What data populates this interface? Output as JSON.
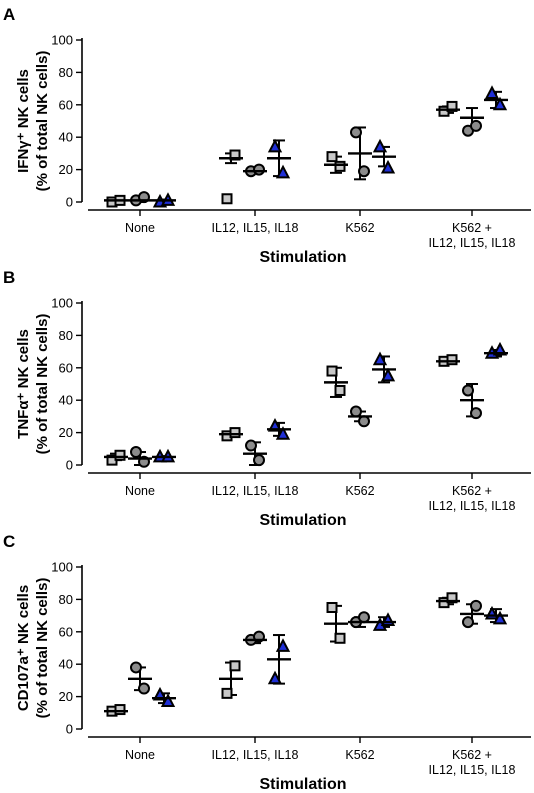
{
  "marker_styles": {
    "square": {
      "fill": "#c8c8c8",
      "stroke": "#000000"
    },
    "circle": {
      "fill": "#8c8c8c",
      "stroke": "#000000"
    },
    "triangle": {
      "fill": "#1f2fd6",
      "stroke": "#000000"
    }
  },
  "chart_data": [
    {
      "panel": "A",
      "type": "scatter",
      "xlabel": "Stimulation",
      "ylabel_line1": "IFNγ⁺ NK cells",
      "ylabel_line2": "(% of total NK cells)",
      "ylim": [
        0,
        100
      ],
      "yticks": [
        "0",
        "20",
        "40",
        "60",
        "80",
        "100"
      ],
      "categories": [
        {
          "lines": [
            "None"
          ]
        },
        {
          "lines": [
            "IL12, IL15, IL18"
          ]
        },
        {
          "lines": [
            "K562"
          ]
        },
        {
          "lines": [
            "K562 +",
            "IL12, IL15, IL18"
          ]
        }
      ],
      "series": [
        {
          "marker": "square",
          "points": [
            [
              0,
              1
            ],
            [
              2,
              29
            ],
            [
              28,
              22
            ],
            [
              56,
              59
            ]
          ],
          "mean": [
            1,
            27,
            23,
            57
          ],
          "sd": [
            1,
            3,
            5,
            2
          ]
        },
        {
          "marker": "circle",
          "points": [
            [
              1,
              3
            ],
            [
              19,
              20
            ],
            [
              43,
              19
            ],
            [
              44,
              47
            ]
          ],
          "mean": [
            1,
            19,
            30,
            52
          ],
          "sd": [
            1,
            0.5,
            16,
            6
          ]
        },
        {
          "marker": "triangle",
          "points": [
            [
              0,
              1
            ],
            [
              34,
              18
            ],
            [
              34,
              21
            ],
            [
              67,
              60
            ]
          ],
          "mean": [
            1,
            27,
            28,
            63
          ],
          "sd": [
            0.5,
            11,
            6,
            5
          ]
        }
      ]
    },
    {
      "panel": "B",
      "type": "scatter",
      "xlabel": "Stimulation",
      "ylabel_line1": "TNFα⁺ NK cells",
      "ylabel_line2": "(% of total NK cells)",
      "ylim": [
        0,
        100
      ],
      "yticks": [
        "0",
        "20",
        "40",
        "60",
        "80",
        "100"
      ],
      "categories": [
        {
          "lines": [
            "None"
          ]
        },
        {
          "lines": [
            "IL12, IL15, IL18"
          ]
        },
        {
          "lines": [
            "K562"
          ]
        },
        {
          "lines": [
            "K562 +",
            "IL12, IL15, IL18"
          ]
        }
      ],
      "series": [
        {
          "marker": "square",
          "points": [
            [
              3,
              6
            ],
            [
              18,
              20
            ],
            [
              58,
              46
            ],
            [
              64,
              65
            ]
          ],
          "mean": [
            5,
            19,
            51,
            64
          ],
          "sd": [
            2,
            1,
            9,
            0.5
          ]
        },
        {
          "marker": "circle",
          "points": [
            [
              8,
              2
            ],
            [
              12,
              3
            ],
            [
              33,
              27
            ],
            [
              46,
              32
            ]
          ],
          "mean": [
            4,
            7,
            30,
            40
          ],
          "sd": [
            4,
            7,
            3,
            10
          ]
        },
        {
          "marker": "triangle",
          "points": [
            [
              5,
              5
            ],
            [
              24,
              19
            ],
            [
              65,
              55
            ],
            [
              69,
              71
            ]
          ],
          "mean": [
            5,
            22,
            59,
            69
          ],
          "sd": [
            0.5,
            4,
            8,
            2
          ]
        }
      ]
    },
    {
      "panel": "C",
      "type": "scatter",
      "xlabel": "Stimulation",
      "ylabel_line1": "CD107a⁺ NK cells",
      "ylabel_line2": "(% of total NK cells)",
      "ylim": [
        0,
        100
      ],
      "yticks": [
        "0",
        "20",
        "40",
        "60",
        "80",
        "100"
      ],
      "categories": [
        {
          "lines": [
            "None"
          ]
        },
        {
          "lines": [
            "IL12, IL15, IL18"
          ]
        },
        {
          "lines": [
            "K562"
          ]
        },
        {
          "lines": [
            "K562 +",
            "IL12, IL15, IL18"
          ]
        }
      ],
      "series": [
        {
          "marker": "square",
          "points": [
            [
              11,
              12
            ],
            [
              22,
              39
            ],
            [
              75,
              56
            ],
            [
              78,
              81
            ]
          ],
          "mean": [
            11,
            31,
            65,
            79
          ],
          "sd": [
            1,
            10,
            11,
            2
          ]
        },
        {
          "marker": "circle",
          "points": [
            [
              38,
              25
            ],
            [
              55,
              57
            ],
            [
              66,
              69
            ],
            [
              66,
              76
            ]
          ],
          "mean": [
            31,
            55,
            66,
            71
          ],
          "sd": [
            7,
            2,
            3,
            6
          ]
        },
        {
          "marker": "triangle",
          "points": [
            [
              21,
              17
            ],
            [
              31,
              51
            ],
            [
              64,
              67
            ],
            [
              71,
              68
            ]
          ],
          "mean": [
            19,
            43,
            66,
            70
          ],
          "sd": [
            3,
            15,
            3,
            4
          ]
        }
      ]
    }
  ]
}
